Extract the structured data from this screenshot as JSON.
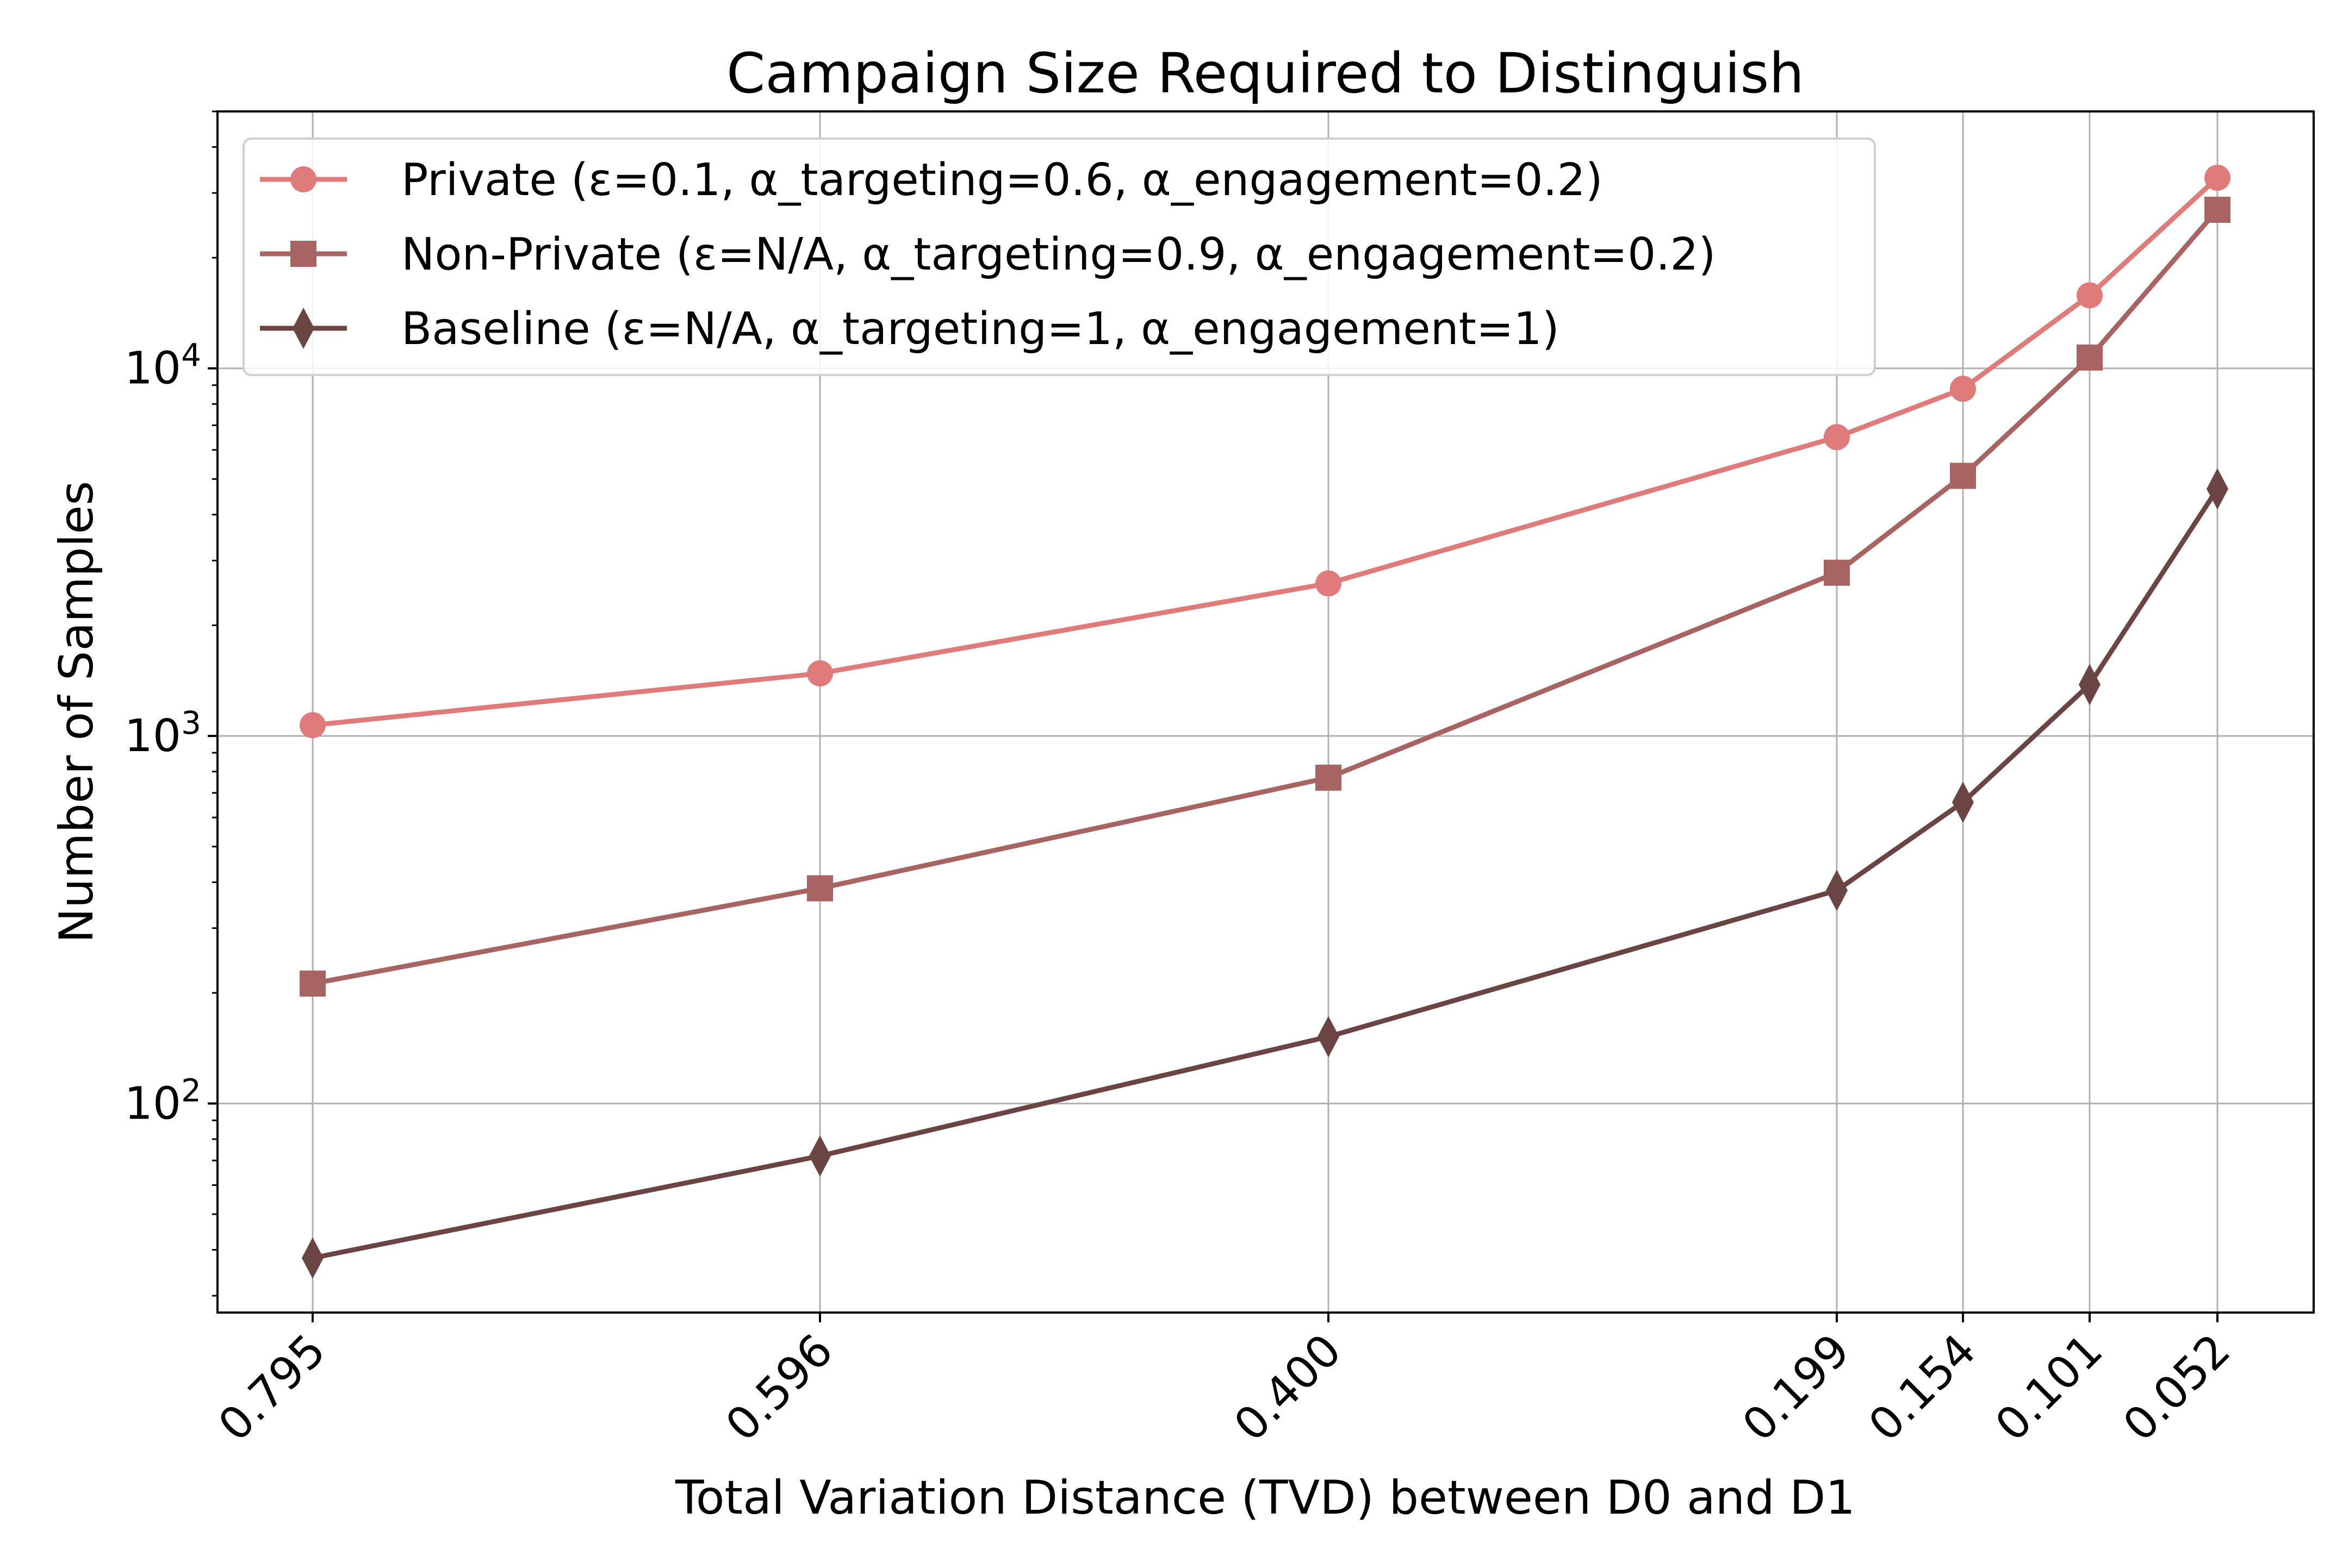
{
  "chart_data": {
    "type": "line",
    "title": "Campaign Size Required to Distinguish",
    "xlabel": "Total Variation Distance (TVD) between D0 and D1",
    "ylabel": "Number of Samples",
    "yscale": "log",
    "ylim": [
      27,
      50000
    ],
    "grid": true,
    "legend_position": "top-left",
    "categories": [
      "0.795",
      "0.596",
      "0.400",
      "0.199",
      "0.154",
      "0.101",
      "0.052"
    ],
    "x": [
      0.795,
      0.596,
      0.4,
      0.199,
      0.154,
      0.101,
      0.052
    ],
    "x_axis": "reversed",
    "y_ticks": [
      {
        "value": 100,
        "base": "10",
        "exp": "2"
      },
      {
        "value": 1000,
        "base": "10",
        "exp": "3"
      },
      {
        "value": 10000,
        "base": "10",
        "exp": "4"
      }
    ],
    "series": [
      {
        "name": "Private (ε=0.1, α_targeting=0.6, α_engagement=0.2)",
        "color": "#e07b7b",
        "marker": "circle",
        "values": [
          1070,
          1480,
          2600,
          6500,
          8800,
          15800,
          33000
        ]
      },
      {
        "name": "Non-Private (ε=N/A, α_targeting=0.9, α_engagement=0.2)",
        "color": "#a86363",
        "marker": "square",
        "values": [
          212,
          385,
          770,
          2780,
          5100,
          10700,
          27000
        ]
      },
      {
        "name": "Baseline (ε=N/A, α_targeting=1, α_engagement=1)",
        "color": "#6b4444",
        "marker": "diamond",
        "values": [
          38,
          72,
          152,
          380,
          660,
          1380,
          4700
        ]
      }
    ]
  }
}
